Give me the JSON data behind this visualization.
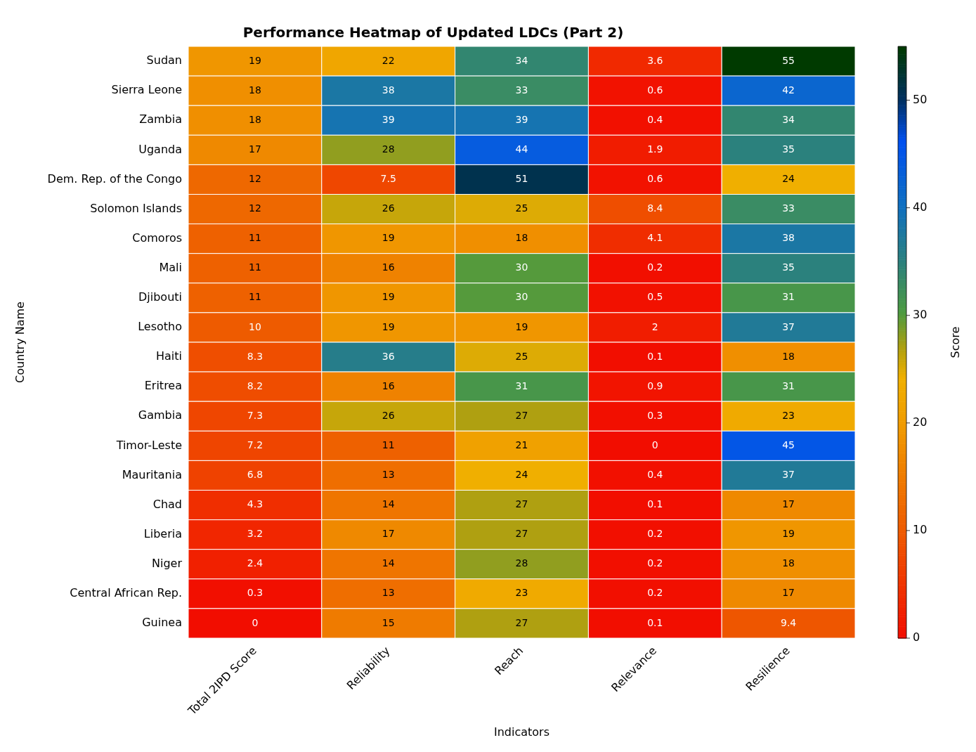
{
  "chart_data": {
    "type": "heatmap",
    "title": "Performance Heatmap of Updated LDCs (Part 2)",
    "xlabel": "Indicators",
    "ylabel": "Country Name",
    "clabel": "Score",
    "categories": [
      "Total 2IPD Score",
      "Reliability",
      "Reach",
      "Relevance",
      "Resilience"
    ],
    "y_categories": [
      "Sudan",
      "Sierra Leone",
      "Zambia",
      "Uganda",
      "Dem. Rep. of the Congo",
      "Solomon Islands",
      "Comoros",
      "Mali",
      "Djibouti",
      "Lesotho",
      "Haiti",
      "Eritrea",
      "Gambia",
      "Timor-Leste",
      "Mauritania",
      "Chad",
      "Liberia",
      "Niger",
      "Central African Rep.",
      "Guinea"
    ],
    "cells": [
      [
        19,
        22,
        34,
        3.6,
        55
      ],
      [
        18,
        38,
        33,
        0.6,
        42
      ],
      [
        18,
        39,
        39,
        0.4,
        34
      ],
      [
        17,
        28,
        44,
        1.9,
        35
      ],
      [
        12,
        7.5,
        51,
        0.6,
        24
      ],
      [
        12,
        26,
        25,
        8.4,
        33
      ],
      [
        11,
        19,
        18,
        4.1,
        38
      ],
      [
        11,
        16,
        30,
        0.2,
        35
      ],
      [
        11,
        19,
        30,
        0.5,
        31
      ],
      [
        10,
        19,
        19,
        2,
        37
      ],
      [
        8.3,
        36,
        25,
        0.1,
        18
      ],
      [
        8.2,
        16,
        31,
        0.9,
        31
      ],
      [
        7.3,
        26,
        27,
        0.3,
        23
      ],
      [
        7.2,
        11,
        21,
        0,
        45
      ],
      [
        6.8,
        13,
        24,
        0.4,
        37
      ],
      [
        4.3,
        14,
        27,
        0.1,
        17
      ],
      [
        3.2,
        17,
        27,
        0.2,
        19
      ],
      [
        2.4,
        14,
        28,
        0.2,
        18
      ],
      [
        0.3,
        13,
        23,
        0.2,
        17
      ],
      [
        0,
        15,
        27,
        0.1,
        9.4
      ]
    ],
    "clim": [
      0,
      55
    ],
    "cticks": [
      0,
      10,
      20,
      30,
      40,
      50
    ],
    "data_labels": true
  }
}
